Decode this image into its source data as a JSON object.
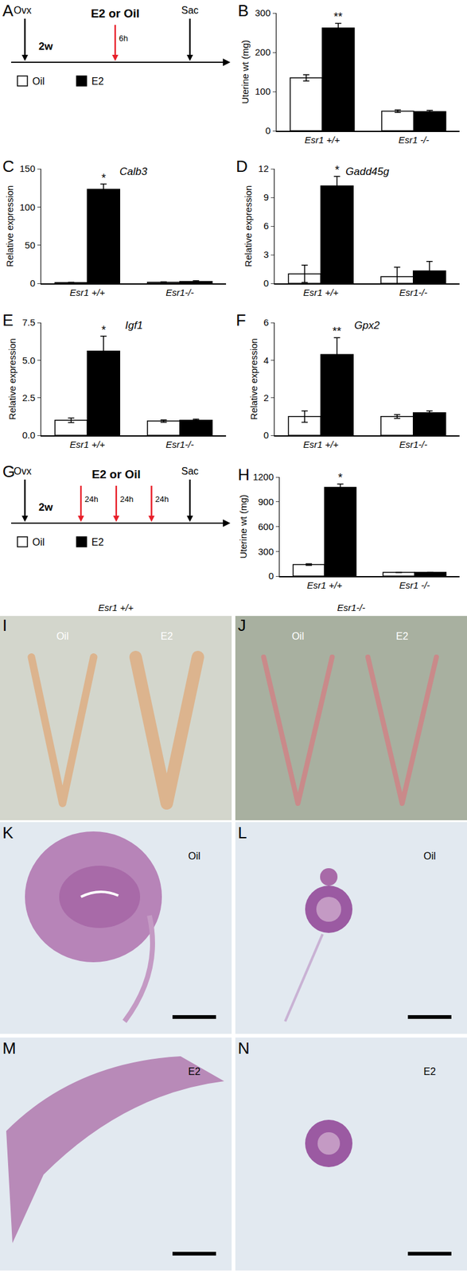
{
  "chart_data": [
    {
      "type": "bar",
      "panel": "B",
      "y_label": "Uterine wt (mg)",
      "categories": [
        "Esr1 +/+",
        "Esr1 -/-"
      ],
      "series": [
        {
          "name": "Oil",
          "color": "#ffffff",
          "values": [
            135,
            50
          ],
          "error": [
            8,
            3
          ]
        },
        {
          "name": "E2",
          "color": "#000000",
          "values": [
            262,
            49
          ],
          "error": [
            12,
            3
          ]
        }
      ],
      "ylim": [
        0,
        300
      ],
      "yticks": [
        0,
        100,
        200,
        300
      ],
      "annotations": [
        {
          "text": "**",
          "category": "Esr1 +/+",
          "series": "E2"
        }
      ]
    },
    {
      "type": "bar",
      "panel": "C",
      "title": "Calb3",
      "y_label": "Relative expression",
      "categories": [
        "Esr1 +/+",
        "Esr1-/-"
      ],
      "series": [
        {
          "name": "Oil",
          "color": "#ffffff",
          "values": [
            1,
            1.5
          ],
          "error": [
            0.5,
            0.5
          ]
        },
        {
          "name": "E2",
          "color": "#000000",
          "values": [
            123,
            2.5
          ],
          "error": [
            7,
            1
          ]
        }
      ],
      "ylim": [
        0,
        150
      ],
      "yticks": [
        0,
        50,
        100,
        150
      ],
      "annotations": [
        {
          "text": "*",
          "category": "Esr1 +/+",
          "series": "E2"
        }
      ]
    },
    {
      "type": "bar",
      "panel": "D",
      "title": "Gadd45g",
      "y_label": "Relative expression",
      "categories": [
        "Esr1 +/+",
        "Esr1-/-"
      ],
      "series": [
        {
          "name": "Oil",
          "color": "#ffffff",
          "values": [
            1,
            0.7
          ],
          "error": [
            0.9,
            1
          ]
        },
        {
          "name": "E2",
          "color": "#000000",
          "values": [
            10.2,
            1.3
          ],
          "error": [
            1,
            1
          ]
        }
      ],
      "ylim": [
        0,
        12
      ],
      "yticks": [
        0,
        3,
        6,
        9,
        12
      ],
      "annotations": [
        {
          "text": "*",
          "category": "Esr1 +/+",
          "series": "E2"
        }
      ]
    },
    {
      "type": "bar",
      "panel": "E",
      "title": "Igf1",
      "y_label": "Relative expression",
      "categories": [
        "Esr1 +/+",
        "Esr1-/-"
      ],
      "series": [
        {
          "name": "Oil",
          "color": "#ffffff",
          "values": [
            1.0,
            0.95
          ],
          "error": [
            0.15,
            0.08
          ]
        },
        {
          "name": "E2",
          "color": "#000000",
          "values": [
            5.6,
            1.0
          ],
          "error": [
            1.0,
            0.08
          ]
        }
      ],
      "ylim": [
        0,
        7.5
      ],
      "yticks": [
        {
          "value": 0,
          "label": "0.0"
        },
        {
          "value": 2.5,
          "label": "2.5"
        },
        {
          "value": 5,
          "label": "5.0"
        },
        {
          "value": 7.5,
          "label": "7.5"
        }
      ],
      "annotations": [
        {
          "text": "*",
          "category": "Esr1 +/+",
          "series": "E2"
        }
      ]
    },
    {
      "type": "bar",
      "panel": "F",
      "title": "Gpx2",
      "y_label": "Relative expression",
      "categories": [
        "Esr1 +/+",
        "Esr1-/-"
      ],
      "series": [
        {
          "name": "Oil",
          "color": "#ffffff",
          "values": [
            1.0,
            1.0
          ],
          "error": [
            0.3,
            0.1
          ]
        },
        {
          "name": "E2",
          "color": "#000000",
          "values": [
            4.3,
            1.2
          ],
          "error": [
            0.9,
            0.1
          ]
        }
      ],
      "ylim": [
        0,
        6
      ],
      "yticks": [
        0,
        2,
        4,
        6
      ],
      "annotations": [
        {
          "text": "**",
          "category": "Esr1 +/+",
          "series": "E2"
        }
      ]
    },
    {
      "type": "bar",
      "panel": "H",
      "y_label": "Uterine wt (mg)",
      "categories": [
        "Esr1 +/+",
        "Esr1 -/-"
      ],
      "series": [
        {
          "name": "Oil",
          "color": "#ffffff",
          "values": [
            140,
            45
          ],
          "error": [
            10,
            3
          ]
        },
        {
          "name": "E2",
          "color": "#000000",
          "values": [
            1075,
            45
          ],
          "error": [
            40,
            3
          ]
        }
      ],
      "ylim": [
        0,
        1200
      ],
      "yticks": [
        0,
        300,
        600,
        900,
        1200
      ],
      "annotations": [
        {
          "text": "*",
          "category": "Esr1 +/+",
          "series": "E2"
        }
      ]
    }
  ],
  "diagrams": [
    {
      "panel": "A",
      "start": "Ovx",
      "interval": "2w",
      "treatment": "E2 or Oil",
      "gaps": [
        "6h"
      ],
      "end": "Sac",
      "legend": [
        {
          "name": "Oil",
          "color": "#ffffff"
        },
        {
          "name": "E2",
          "color": "#000000"
        }
      ]
    },
    {
      "panel": "G",
      "start": "Ovx",
      "interval": "2w",
      "treatment": "E2 or Oil",
      "gaps": [
        "24h",
        "24h",
        "24h"
      ],
      "end": "Sac",
      "legend": [
        {
          "name": "Oil",
          "color": "#ffffff"
        },
        {
          "name": "E2",
          "color": "#000000"
        }
      ]
    }
  ],
  "photos": [
    {
      "panel": "I",
      "header": "Esr1 +/+",
      "labels": [
        "Oil",
        "E2"
      ]
    },
    {
      "panel": "J",
      "header": "Esr1-/-",
      "labels": [
        "Oil",
        "E2"
      ]
    }
  ],
  "sections": [
    {
      "panel": "K",
      "label": "Oil"
    },
    {
      "panel": "L",
      "label": "Oil"
    },
    {
      "panel": "M",
      "label": "E2"
    },
    {
      "panel": "N",
      "label": "E2"
    }
  ]
}
